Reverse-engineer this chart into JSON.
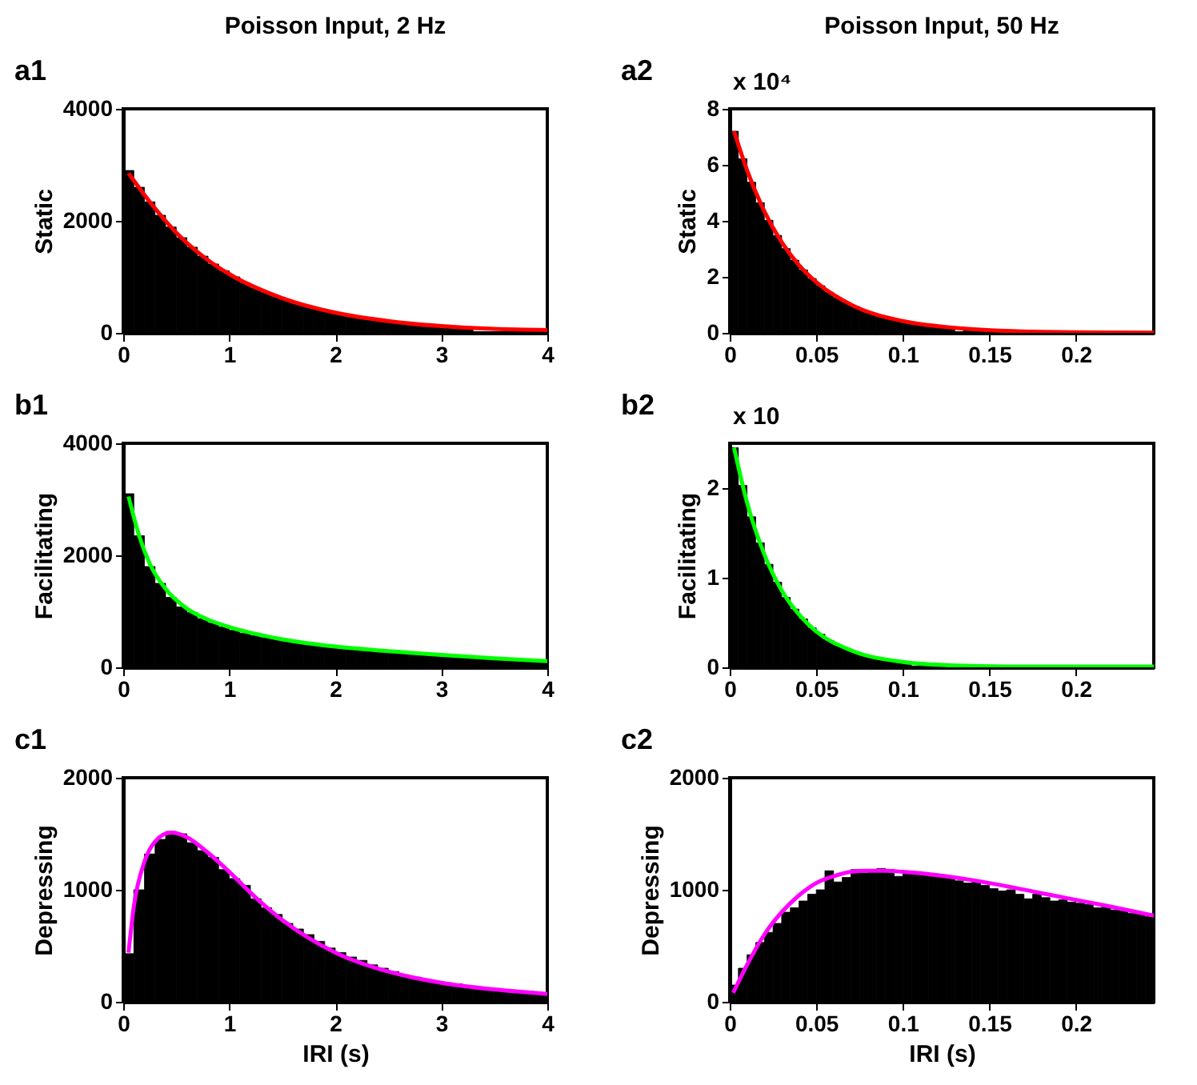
{
  "chart_data": [
    {
      "type": "histogram",
      "title": "Poisson Input, 2 Hz",
      "ylabel": "Static",
      "annotations": [
        "a1"
      ],
      "color": "#000000",
      "xlim": [
        0,
        4
      ],
      "xticks": [
        0,
        1,
        2,
        3,
        4
      ],
      "ylim": [
        0,
        4000
      ],
      "yticks": [
        0,
        2000,
        4000
      ],
      "grid": false,
      "bins": [
        0,
        0.1,
        0.2,
        0.3,
        0.4,
        0.5,
        0.6,
        0.7,
        0.8,
        0.9,
        1,
        1.1,
        1.2,
        1.3,
        1.4,
        1.5,
        1.6,
        1.7,
        1.8,
        1.9,
        2,
        2.1,
        2.2,
        2.3,
        2.4,
        2.5,
        2.6,
        2.7,
        2.8,
        2.9,
        3,
        3.1,
        3.2,
        3.3,
        3.4,
        3.5,
        3.6,
        3.7,
        3.8,
        3.9,
        4
      ],
      "values": [
        2900,
        2600,
        2340,
        2100,
        1890,
        1700,
        1530,
        1370,
        1230,
        1110,
        1000,
        890,
        800,
        720,
        650,
        580,
        520,
        470,
        420,
        380,
        340,
        310,
        280,
        250,
        220,
        200,
        180,
        160,
        150,
        130,
        120,
        110,
        90,
        null,
        null,
        null,
        null,
        null,
        null,
        null
      ],
      "series": [
        {
          "type": "line",
          "color": "#ff0000",
          "x": [
            0.05,
            0.25,
            0.5,
            0.75,
            1,
            1.5,
            2,
            2.5,
            3,
            3.5,
            4
          ],
          "values": [
            2850,
            2340,
            1790,
            1370,
            1050,
            620,
            360,
            210,
            120,
            70,
            50
          ]
        }
      ]
    },
    {
      "type": "histogram",
      "title": "Poisson Input, 50 Hz",
      "ylabel": "Static",
      "annotations": [
        "a2",
        "x 10⁴"
      ],
      "color": "#000000",
      "xlim": [
        0,
        0.245
      ],
      "xticks": [
        0,
        0.05,
        0.1,
        0.15,
        0.2
      ],
      "ylim": [
        0,
        8
      ],
      "yticks": [
        0,
        2,
        4,
        6,
        8
      ],
      "grid": false,
      "bins": [
        0,
        0.005,
        0.01,
        0.015,
        0.02,
        0.025,
        0.03,
        0.035,
        0.04,
        0.045,
        0.05,
        0.055,
        0.06,
        0.065,
        0.07,
        0.075,
        0.08,
        0.085,
        0.09,
        0.095,
        0.1,
        0.105,
        0.11,
        0.115,
        0.12,
        0.125,
        0.13,
        0.135,
        0.14,
        0.145,
        0.15,
        0.155,
        0.16,
        0.165,
        0.17,
        0.175,
        0.18,
        0.185,
        0.19,
        0.195,
        0.2,
        0.205,
        0.21,
        0.215,
        0.22,
        0.225,
        0.23,
        0.235,
        0.24,
        0.245
      ],
      "values": [
        7.2,
        6.22,
        5.38,
        4.65,
        4.02,
        3.48,
        3.01,
        2.6,
        2.25,
        1.94,
        1.68,
        1.45,
        1.25,
        1.08,
        0.94,
        0.81,
        0.7,
        0.61,
        0.52,
        0.45,
        0.39,
        0.34,
        0.29,
        0.25,
        0.22,
        0.19,
        null,
        0.14,
        null,
        null,
        null,
        null,
        0.07,
        0.06,
        0.05,
        0.04,
        0.04,
        0.03,
        0.03,
        0.02,
        0.02,
        0.02,
        0.02,
        0.01,
        0.01,
        0.01,
        0.01,
        0.01,
        0.01
      ],
      "series": [
        {
          "type": "line",
          "color": "#ff0000",
          "x": [
            0.0025,
            0.01,
            0.02,
            0.03,
            0.04,
            0.05,
            0.07,
            0.1,
            0.13,
            0.16,
            0.2,
            0.245
          ],
          "values": [
            7.2,
            5.81,
            4.34,
            3.24,
            2.42,
            1.81,
            1.01,
            0.42,
            0.18,
            0.07,
            0.02,
            0.01
          ]
        }
      ]
    },
    {
      "type": "histogram",
      "ylabel": "Facilitating",
      "annotations": [
        "b1"
      ],
      "color": "#000000",
      "xlim": [
        0,
        4
      ],
      "xticks": [
        0,
        1,
        2,
        3,
        4
      ],
      "ylim": [
        0,
        4000
      ],
      "yticks": [
        0,
        2000,
        4000
      ],
      "grid": false,
      "bins": [
        0,
        0.1,
        0.2,
        0.3,
        0.4,
        0.5,
        0.6,
        0.7,
        0.8,
        0.9,
        1,
        1.1,
        1.2,
        1.3,
        1.4,
        1.5,
        1.6,
        1.7,
        1.8,
        1.9,
        2,
        2.1,
        2.2,
        2.3,
        2.4,
        2.5,
        2.6,
        2.7,
        2.8,
        2.9,
        3,
        3.1,
        3.2,
        3.3,
        3.4,
        3.5,
        3.6,
        3.7,
        3.8,
        3.9,
        4
      ],
      "values": [
        3100,
        2350,
        1800,
        1500,
        1250,
        1080,
        980,
        870,
        790,
        720,
        660,
        610,
        570,
        530,
        500,
        470,
        440,
        410,
        390,
        370,
        350,
        330,
        310,
        300,
        280,
        270,
        250,
        240,
        220,
        200,
        200,
        180,
        180,
        160,
        160,
        140,
        140,
        120,
        120,
        100
      ],
      "series": [
        {
          "type": "line",
          "color": "#00ff00",
          "x": [
            0.05,
            0.15,
            0.25,
            0.4,
            0.6,
            0.8,
            1,
            1.5,
            2,
            2.5,
            3,
            3.5,
            4
          ],
          "values": [
            3050,
            2350,
            1850,
            1400,
            1050,
            850,
            720,
            500,
            370,
            290,
            220,
            160,
            110
          ]
        }
      ]
    },
    {
      "type": "histogram",
      "ylabel": "Facilitating",
      "annotations": [
        "b2",
        "x 10"
      ],
      "color": "#000000",
      "xlim": [
        0,
        0.245
      ],
      "xticks": [
        0,
        0.05,
        0.1,
        0.15,
        0.2
      ],
      "ylim": [
        0,
        2.5
      ],
      "yticks": [
        0,
        1,
        2
      ],
      "grid": false,
      "bins": [
        0,
        0.005,
        0.01,
        0.015,
        0.02,
        0.025,
        0.03,
        0.035,
        0.04,
        0.045,
        0.05,
        0.055,
        0.06,
        0.065,
        0.07,
        0.075,
        0.08,
        0.085,
        0.09,
        0.095,
        0.1,
        0.105,
        0.11,
        0.115,
        0.12,
        0.125,
        0.13,
        0.135,
        0.14,
        0.145,
        0.15,
        0.155,
        0.16,
        0.165,
        0.17,
        0.175,
        0.18,
        0.185,
        0.19,
        0.195,
        0.2,
        0.205,
        0.21,
        0.215,
        0.22,
        0.225,
        0.23,
        0.235,
        0.24,
        0.245
      ],
      "values": [
        2.45,
        2.03,
        1.68,
        1.39,
        1.15,
        0.95,
        0.78,
        0.65,
        0.54,
        0.44,
        0.37,
        0.3,
        0.25,
        0.21,
        0.17,
        0.14,
        0.12,
        0.1,
        0.08,
        0.07,
        0.05,
        null,
        null,
        null,
        null,
        0.02,
        0.02,
        0.01,
        0.01,
        0.01,
        0.01,
        0.01,
        0.01,
        0.01,
        0.01,
        0.01,
        0.01,
        0.01,
        0.01,
        0.01,
        0.01,
        0.01,
        0.01,
        0.01,
        0.01,
        0.01,
        0.01,
        0.01,
        0.01
      ],
      "series": [
        {
          "type": "line",
          "color": "#00ff00",
          "x": [
            0.0025,
            0.01,
            0.02,
            0.03,
            0.04,
            0.05,
            0.07,
            0.1,
            0.13,
            0.16,
            0.2,
            0.245
          ],
          "values": [
            2.45,
            1.84,
            1.26,
            0.86,
            0.59,
            0.4,
            0.19,
            0.06,
            0.02,
            0.01,
            0.01,
            0.01
          ]
        }
      ]
    },
    {
      "type": "histogram",
      "ylabel": "Depressing",
      "xlabel": "IRI (s)",
      "annotations": [
        "c1"
      ],
      "color": "#000000",
      "xlim": [
        0,
        4
      ],
      "xticks": [
        0,
        1,
        2,
        3,
        4
      ],
      "ylim": [
        0,
        2000
      ],
      "yticks": [
        0,
        1000,
        2000
      ],
      "grid": false,
      "bins": [
        0,
        0.1,
        0.2,
        0.3,
        0.4,
        0.5,
        0.6,
        0.7,
        0.8,
        0.9,
        1,
        1.1,
        1.2,
        1.3,
        1.4,
        1.5,
        1.6,
        1.7,
        1.8,
        1.9,
        2,
        2.1,
        2.2,
        2.3,
        2.4,
        2.5,
        2.6,
        2.7,
        2.8,
        2.9,
        3,
        3.1,
        3.2,
        3.3,
        3.4,
        3.5,
        3.6,
        3.7,
        3.8,
        3.9,
        4
      ],
      "values": [
        430,
        1000,
        1320,
        1450,
        1520,
        1500,
        1420,
        1350,
        1290,
        1180,
        1100,
        1040,
        920,
        840,
        780,
        700,
        650,
        600,
        540,
        480,
        440,
        400,
        370,
        330,
        300,
        270,
        240,
        220,
        200,
        180,
        170,
        160,
        140,
        120,
        120,
        100,
        100,
        80,
        80,
        70
      ],
      "series": [
        {
          "type": "line",
          "color": "#ff00ff",
          "x": [
            0.05,
            0.1,
            0.2,
            0.3,
            0.45,
            0.6,
            0.8,
            1,
            1.25,
            1.5,
            2,
            2.5,
            3,
            3.5,
            4
          ],
          "values": [
            440,
            850,
            1250,
            1430,
            1510,
            1470,
            1330,
            1160,
            930,
            730,
            440,
            270,
            170,
            110,
            70
          ]
        }
      ]
    },
    {
      "type": "histogram",
      "ylabel": "Depressing",
      "xlabel": "IRI (s)",
      "annotations": [
        "c2"
      ],
      "color": "#000000",
      "xlim": [
        0,
        0.245
      ],
      "xticks": [
        0,
        0.05,
        0.1,
        0.15,
        0.2
      ],
      "ylim": [
        0,
        2000
      ],
      "yticks": [
        0,
        1000,
        2000
      ],
      "grid": false,
      "bins": [
        0,
        0.005,
        0.01,
        0.015,
        0.02,
        0.025,
        0.03,
        0.035,
        0.04,
        0.045,
        0.05,
        0.055,
        0.06,
        0.065,
        0.07,
        0.075,
        0.08,
        0.085,
        0.09,
        0.095,
        0.1,
        0.105,
        0.11,
        0.115,
        0.12,
        0.125,
        0.13,
        0.135,
        0.14,
        0.145,
        0.15,
        0.155,
        0.16,
        0.165,
        0.17,
        0.175,
        0.18,
        0.185,
        0.19,
        0.195,
        0.2,
        0.205,
        0.21,
        0.215,
        0.22,
        0.225,
        0.23,
        0.235,
        0.24,
        0.245
      ],
      "values": [
        150,
        300,
        420,
        530,
        620,
        700,
        800,
        840,
        900,
        960,
        1000,
        1170,
        1070,
        1110,
        1180,
        1150,
        1170,
        1190,
        1180,
        1120,
        1150,
        1150,
        1140,
        1120,
        1110,
        1100,
        1080,
        1060,
        1070,
        1040,
        1010,
        990,
        1000,
        960,
        920,
        960,
        930,
        900,
        910,
        890,
        880,
        870,
        840,
        860,
        820,
        810,
        790,
        780,
        760
      ],
      "series": [
        {
          "type": "line",
          "color": "#ff00ff",
          "x": [
            0.002,
            0.01,
            0.02,
            0.03,
            0.04,
            0.05,
            0.06,
            0.07,
            0.08,
            0.09,
            0.1,
            0.12,
            0.15,
            0.18,
            0.2,
            0.22,
            0.245
          ],
          "values": [
            80,
            330,
            600,
            800,
            950,
            1060,
            1120,
            1160,
            1170,
            1170,
            1160,
            1130,
            1060,
            970,
            910,
            850,
            770
          ]
        }
      ]
    }
  ]
}
